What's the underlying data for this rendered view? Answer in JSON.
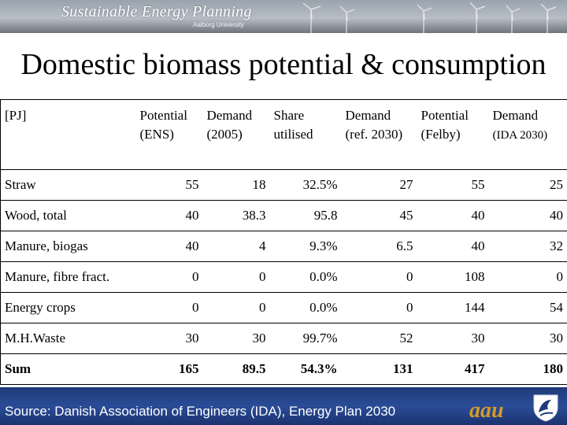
{
  "banner": {
    "title": "Sustainable Energy Planning",
    "subtitle": "Aalborg University"
  },
  "page_title": "Domestic biomass potential & consumption",
  "table": {
    "unit": "[PJ]",
    "columns": [
      {
        "label": "Potential (ENS)"
      },
      {
        "label": "Demand (2005)"
      },
      {
        "label": "Share utilised"
      },
      {
        "label": "Demand (ref. 2030)"
      },
      {
        "label": "Potential (Felby)"
      },
      {
        "label": "Demand",
        "label2": "(IDA 2030)"
      }
    ],
    "rows": [
      {
        "label": "Straw",
        "values": [
          "55",
          "18",
          "32.5%",
          "27",
          "55",
          "25"
        ]
      },
      {
        "label": "Wood, total",
        "values": [
          "40",
          "38.3",
          "95.8",
          "45",
          "40",
          "40"
        ]
      },
      {
        "label": "Manure, biogas",
        "values": [
          "40",
          "4",
          "9.3%",
          "6.5",
          "40",
          "32"
        ]
      },
      {
        "label": "Manure, fibre fract.",
        "values": [
          "0",
          "0",
          "0.0%",
          "0",
          "108",
          "0"
        ]
      },
      {
        "label": "Energy crops",
        "values": [
          "0",
          "0",
          "0.0%",
          "0",
          "144",
          "54"
        ]
      },
      {
        "label": "M.H.Waste",
        "values": [
          "30",
          "30",
          "99.7%",
          "52",
          "30",
          "30"
        ]
      },
      {
        "label": "Sum",
        "values": [
          "165",
          "89.5",
          "54.3%",
          "131",
          "417",
          "180"
        ]
      }
    ]
  },
  "footer": {
    "source": "Source: Danish Association of Engineers (IDA), Energy Plan 2030",
    "logo_text": "aau"
  },
  "colors": {
    "footer_blue": "#2a4c97",
    "logo_gold": "#d49a2a"
  },
  "icons": [
    "wind-turbine-icon",
    "university-emblem-icon"
  ]
}
